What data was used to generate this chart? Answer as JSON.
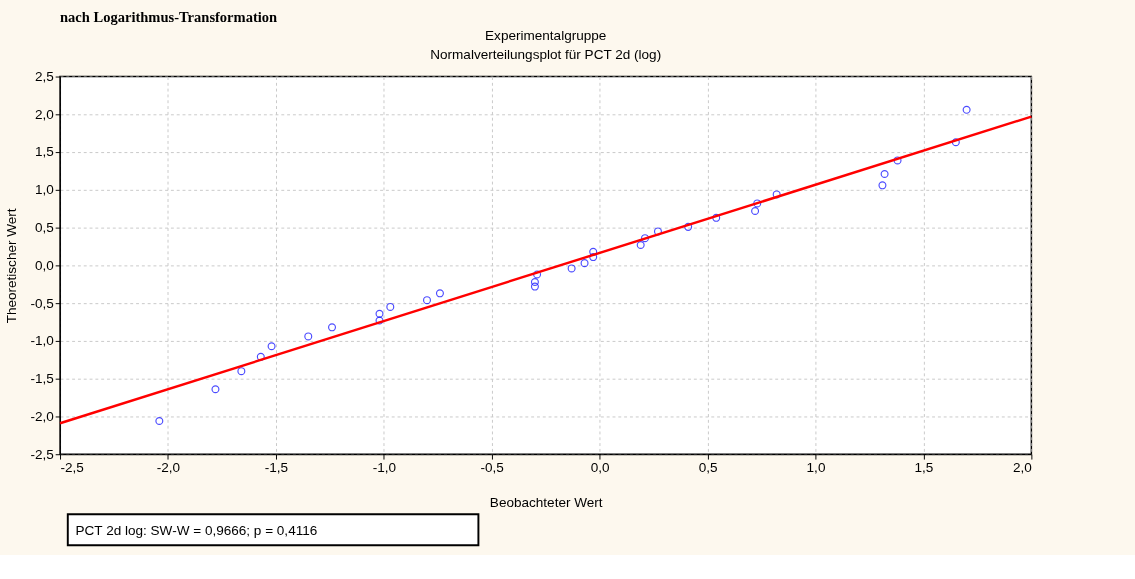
{
  "chart_data": {
    "type": "scatter",
    "title": "Experimentalgruppe",
    "subtitle": "Normalverteilungsplot für PCT 2d (log)",
    "xlabel": "Beobachteter Wert",
    "ylabel": "Theoretischer Wert",
    "annotations": [
      "nach Logarithmus-Transformation",
      "PCT 2d log:  SW-W = 0,9666; p = 0,4116"
    ],
    "series": [
      {
        "type": "scatter",
        "color": "#0000ff",
        "marker": "circle",
        "x": [
          -2.04,
          -1.78,
          -1.66,
          -1.57,
          -1.52,
          -1.35,
          -1.24,
          -1.02,
          -1.02,
          -0.97,
          -0.8,
          -0.74,
          -0.3,
          -0.3,
          -0.29,
          -0.13,
          -0.07,
          -0.03,
          -0.03,
          0.19,
          0.21,
          0.27,
          0.41,
          0.54,
          0.72,
          0.73,
          0.82,
          1.31,
          1.32,
          1.38,
          1.65,
          1.7
        ],
        "values": [
          -2.06,
          -1.64,
          -1.4,
          -1.21,
          -1.07,
          -0.94,
          -0.82,
          -0.73,
          -0.64,
          -0.55,
          -0.46,
          -0.37,
          -0.28,
          -0.22,
          -0.12,
          -0.04,
          0.03,
          0.11,
          0.18,
          0.27,
          0.36,
          0.45,
          0.51,
          0.63,
          0.72,
          0.82,
          0.94,
          1.06,
          1.21,
          1.39,
          1.63,
          2.06
        ]
      },
      {
        "type": "line",
        "color": "#ff0000",
        "line_style": "solid",
        "marker": "none",
        "x": [
          -2.5,
          2.0
        ],
        "values": [
          -2.09,
          1.97
        ]
      }
    ],
    "xlim": [
      -2.5,
      2.0
    ],
    "ylim": [
      -2.5,
      2.5
    ],
    "xticks": [
      {
        "value": -2.5,
        "label": "-2,5"
      },
      {
        "value": -2.0,
        "label": "-2,0"
      },
      {
        "value": -1.5,
        "label": "-1,5"
      },
      {
        "value": -1.0,
        "label": "-1,0"
      },
      {
        "value": -0.5,
        "label": "-0,5"
      },
      {
        "value": 0.0,
        "label": "0,0"
      },
      {
        "value": 0.5,
        "label": "0,5"
      },
      {
        "value": 1.0,
        "label": "1,0"
      },
      {
        "value": 1.5,
        "label": "1,5"
      },
      {
        "value": 2.0,
        "label": "2,0"
      }
    ],
    "yticks": [
      {
        "value": -2.5,
        "label": "-2,5"
      },
      {
        "value": -2.0,
        "label": "-2,0"
      },
      {
        "value": -1.5,
        "label": "-1,5"
      },
      {
        "value": -1.0,
        "label": "-1,0"
      },
      {
        "value": -0.5,
        "label": "-0,5"
      },
      {
        "value": 0.0,
        "label": "0,0"
      },
      {
        "value": 0.5,
        "label": "0,5"
      },
      {
        "value": 1.0,
        "label": "1,0"
      },
      {
        "value": 1.5,
        "label": "1,5"
      },
      {
        "value": 2.0,
        "label": "2,0"
      },
      {
        "value": 2.5,
        "label": "2,5"
      }
    ],
    "grid": true
  }
}
